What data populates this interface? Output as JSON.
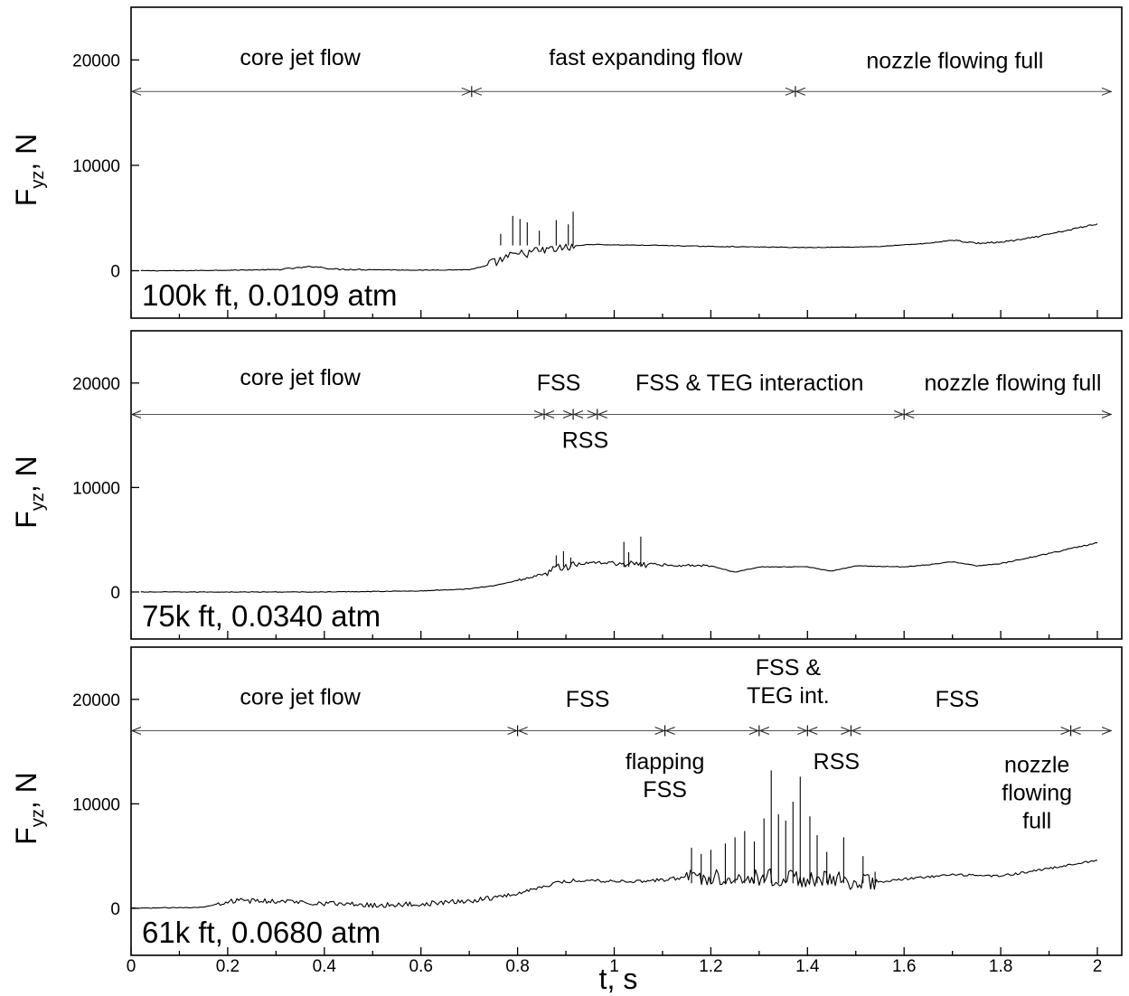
{
  "figure": {
    "xlabel": "t, s",
    "ylabel_main": "F",
    "ylabel_sub": "yz",
    "ylabel_unit": ", N"
  },
  "chart_data": [
    {
      "type": "line",
      "case_label": "100k ft, 0.0109 atm",
      "xlim": [
        0,
        2.05
      ],
      "ylim": [
        -4500,
        25000
      ],
      "yticks": [
        0,
        10000,
        20000
      ],
      "ytick_labels": [
        "0",
        "10000",
        "20000"
      ],
      "phase_line_y": 17000,
      "phase_boundaries": [
        0,
        0.705,
        1.375,
        2.03
      ],
      "phase_labels": [
        {
          "lines": [
            "core jet flow"
          ],
          "x": 0.35,
          "y": 19500
        },
        {
          "lines": [
            "fast expanding flow"
          ],
          "x": 1.065,
          "y": 19500
        },
        {
          "lines": [
            "nozzle flowing full"
          ],
          "x": 1.705,
          "y": 19200
        }
      ],
      "series": [
        {
          "x": [
            0.02,
            0.1,
            0.2,
            0.3,
            0.38,
            0.42,
            0.5,
            0.6,
            0.7,
            0.73,
            0.76,
            0.78,
            0.8,
            0.82,
            0.84,
            0.86,
            0.88,
            0.9,
            0.92,
            0.95,
            1.0,
            1.1,
            1.2,
            1.3,
            1.4,
            1.5,
            1.55,
            1.6,
            1.65,
            1.7,
            1.75,
            1.8,
            1.85,
            1.9,
            1.95,
            2.0
          ],
          "y": [
            0,
            0,
            50,
            100,
            400,
            150,
            100,
            50,
            100,
            400,
            900,
            1300,
            1500,
            1700,
            1850,
            1950,
            2050,
            2150,
            2350,
            2500,
            2450,
            2400,
            2300,
            2250,
            2200,
            2250,
            2300,
            2450,
            2600,
            2900,
            2600,
            2700,
            3000,
            3450,
            3950,
            4450
          ]
        }
      ],
      "spikes": [
        [
          0.765,
          3500
        ],
        [
          0.79,
          5200
        ],
        [
          0.805,
          4900
        ],
        [
          0.82,
          4600
        ],
        [
          0.845,
          3800
        ],
        [
          0.88,
          4800
        ],
        [
          0.905,
          4400
        ],
        [
          0.915,
          5600
        ]
      ]
    },
    {
      "type": "line",
      "case_label": "75k ft, 0.0340 atm",
      "xlim": [
        0,
        2.05
      ],
      "ylim": [
        -4500,
        25000
      ],
      "yticks": [
        0,
        10000,
        20000
      ],
      "ytick_labels": [
        "0",
        "10000",
        "20000"
      ],
      "phase_line_y": 17000,
      "phase_boundaries": [
        0,
        0.855,
        0.915,
        0.965,
        1.6,
        2.03
      ],
      "phase_labels": [
        {
          "lines": [
            "core jet flow"
          ],
          "x": 0.35,
          "y": 19800
        },
        {
          "lines": [
            "FSS"
          ],
          "x": 0.885,
          "y": 19300
        },
        {
          "lines": [
            "RSS"
          ],
          "x": 0.94,
          "y": 13800
        },
        {
          "lines": [
            "FSS & TEG interaction"
          ],
          "x": 1.28,
          "y": 19300
        },
        {
          "lines": [
            "nozzle flowing full"
          ],
          "x": 1.825,
          "y": 19300
        }
      ],
      "series": [
        {
          "x": [
            0.02,
            0.2,
            0.4,
            0.6,
            0.7,
            0.75,
            0.8,
            0.85,
            0.9,
            0.95,
            1.0,
            1.1,
            1.2,
            1.25,
            1.3,
            1.4,
            1.45,
            1.5,
            1.6,
            1.65,
            1.7,
            1.75,
            1.8,
            1.9,
            2.0
          ],
          "y": [
            0,
            0,
            0,
            100,
            300,
            600,
            1100,
            1700,
            2500,
            2800,
            2800,
            2600,
            2500,
            1900,
            2400,
            2400,
            2000,
            2500,
            2400,
            2600,
            2900,
            2500,
            2700,
            3700,
            4700
          ]
        }
      ],
      "spikes": [
        [
          0.88,
          3500
        ],
        [
          0.895,
          3900
        ],
        [
          0.91,
          3300
        ],
        [
          1.02,
          4800
        ],
        [
          1.03,
          3800
        ],
        [
          1.055,
          5300
        ]
      ]
    },
    {
      "type": "line",
      "case_label": "61k ft, 0.0680 atm",
      "xlim": [
        0,
        2.05
      ],
      "ylim": [
        -4500,
        25000
      ],
      "yticks": [
        0,
        10000,
        20000
      ],
      "ytick_labels": [
        "0",
        "10000",
        "20000"
      ],
      "phase_line_y": 17000,
      "phase_boundaries": [
        0,
        0.8,
        1.105,
        1.3,
        1.4,
        1.49,
        1.945,
        2.03
      ],
      "phase_labels": [
        {
          "lines": [
            "core jet flow"
          ],
          "x": 0.35,
          "y": 19500
        },
        {
          "lines": [
            "FSS"
          ],
          "x": 0.945,
          "y": 19300
        },
        {
          "lines": [
            "FSS &",
            "TEG int."
          ],
          "x": 1.36,
          "y": 22300
        },
        {
          "lines": [
            "FSS"
          ],
          "x": 1.71,
          "y": 19300
        },
        {
          "lines": [
            "flapping",
            "FSS"
          ],
          "x": 1.105,
          "y": 13300
        },
        {
          "lines": [
            "RSS"
          ],
          "x": 1.46,
          "y": 13300
        },
        {
          "lines": [
            "nozzle",
            "flowing",
            "full"
          ],
          "x": 1.875,
          "y": 13000
        }
      ],
      "series": [
        {
          "x": [
            0.0,
            0.15,
            0.2,
            0.3,
            0.4,
            0.5,
            0.6,
            0.7,
            0.8,
            0.85,
            0.9,
            0.95,
            1.0,
            1.05,
            1.1,
            1.15,
            1.2,
            1.3,
            1.4,
            1.5,
            1.55,
            1.6,
            1.7,
            1.8,
            1.9,
            2.0
          ],
          "y": [
            0,
            100,
            700,
            700,
            500,
            300,
            400,
            700,
            1400,
            2100,
            2600,
            2700,
            2600,
            2600,
            2700,
            3000,
            3000,
            3000,
            2800,
            2600,
            2500,
            2800,
            3200,
            3100,
            3800,
            4600
          ]
        }
      ],
      "spikes": [
        [
          1.16,
          5800
        ],
        [
          1.18,
          5200
        ],
        [
          1.2,
          5600
        ],
        [
          1.23,
          6200
        ],
        [
          1.25,
          6800
        ],
        [
          1.27,
          7400
        ],
        [
          1.29,
          6400
        ],
        [
          1.31,
          8600
        ],
        [
          1.325,
          13200
        ],
        [
          1.34,
          9000
        ],
        [
          1.355,
          8400
        ],
        [
          1.37,
          10200
        ],
        [
          1.385,
          12600
        ],
        [
          1.405,
          8800
        ],
        [
          1.42,
          7000
        ],
        [
          1.44,
          5400
        ],
        [
          1.475,
          6800
        ],
        [
          1.515,
          5000
        ],
        [
          1.54,
          3500
        ]
      ]
    }
  ]
}
